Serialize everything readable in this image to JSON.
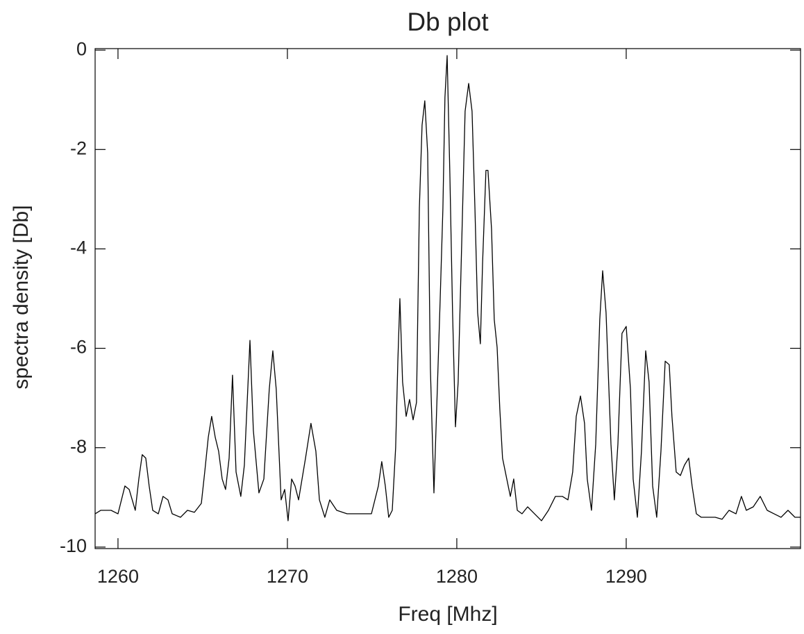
{
  "chart_data": {
    "type": "line",
    "title": "Db plot",
    "xlabel": "Freq [Mhz]",
    "ylabel": "spectra density [Db]",
    "color": "#000000",
    "xlim": [
      1258.65,
      1300.29
    ],
    "ylim": [
      -10.03,
      0.03
    ],
    "xticks": [
      1260,
      1270,
      1280,
      1290
    ],
    "yticks": [
      -10,
      -8,
      -6,
      -4,
      -2,
      0
    ],
    "grid": false,
    "x": [
      1258.65,
      1258.98,
      1259.59,
      1260.0,
      1260.41,
      1260.66,
      1261.02,
      1261.23,
      1261.43,
      1261.64,
      1261.84,
      1262.05,
      1262.38,
      1262.66,
      1262.95,
      1263.2,
      1263.69,
      1264.1,
      1264.51,
      1264.92,
      1265.12,
      1265.33,
      1265.53,
      1265.74,
      1265.94,
      1266.15,
      1266.35,
      1266.56,
      1266.76,
      1266.97,
      1267.25,
      1267.46,
      1267.79,
      1267.99,
      1268.32,
      1268.61,
      1268.93,
      1269.14,
      1269.34,
      1269.63,
      1269.84,
      1270.04,
      1270.25,
      1270.45,
      1270.66,
      1271.07,
      1271.39,
      1271.68,
      1271.89,
      1272.21,
      1272.5,
      1272.91,
      1273.52,
      1274.34,
      1274.96,
      1275.37,
      1275.57,
      1275.78,
      1275.98,
      1276.19,
      1276.39,
      1276.52,
      1276.64,
      1276.8,
      1277.01,
      1277.21,
      1277.42,
      1277.62,
      1277.79,
      1277.95,
      1278.11,
      1278.28,
      1278.44,
      1278.65,
      1278.85,
      1279.02,
      1279.18,
      1279.3,
      1279.43,
      1279.59,
      1279.75,
      1279.92,
      1280.08,
      1280.29,
      1280.49,
      1280.7,
      1280.9,
      1281.07,
      1281.23,
      1281.39,
      1281.52,
      1281.72,
      1281.84,
      1282.05,
      1282.21,
      1282.38,
      1282.54,
      1282.7,
      1282.95,
      1283.16,
      1283.36,
      1283.57,
      1283.85,
      1284.18,
      1284.59,
      1285.0,
      1285.41,
      1285.82,
      1286.23,
      1286.56,
      1286.84,
      1287.05,
      1287.3,
      1287.54,
      1287.7,
      1287.95,
      1288.2,
      1288.44,
      1288.61,
      1288.81,
      1289.1,
      1289.3,
      1289.51,
      1289.75,
      1290.0,
      1290.25,
      1290.41,
      1290.66,
      1290.9,
      1291.15,
      1291.35,
      1291.56,
      1291.8,
      1292.05,
      1292.3,
      1292.54,
      1292.7,
      1292.95,
      1293.2,
      1293.44,
      1293.69,
      1293.89,
      1294.14,
      1294.43,
      1294.84,
      1295.25,
      1295.66,
      1296.07,
      1296.48,
      1296.8,
      1297.09,
      1297.5,
      1297.91,
      1298.32,
      1298.73,
      1299.14,
      1299.55,
      1299.96,
      1300.29
    ],
    "values": [
      -9.33,
      -9.26,
      -9.26,
      -9.33,
      -8.77,
      -8.84,
      -9.26,
      -8.63,
      -8.14,
      -8.21,
      -8.77,
      -9.26,
      -9.33,
      -8.98,
      -9.05,
      -9.33,
      -9.4,
      -9.26,
      -9.3,
      -9.12,
      -8.49,
      -7.79,
      -7.37,
      -7.79,
      -8.07,
      -8.63,
      -8.84,
      -8.21,
      -6.54,
      -8.49,
      -8.98,
      -8.35,
      -5.84,
      -7.65,
      -8.91,
      -8.63,
      -6.82,
      -6.05,
      -6.82,
      -9.05,
      -8.84,
      -9.47,
      -8.63,
      -8.77,
      -9.05,
      -8.21,
      -7.51,
      -8.07,
      -9.05,
      -9.4,
      -9.05,
      -9.26,
      -9.33,
      -9.33,
      -9.33,
      -8.77,
      -8.28,
      -8.77,
      -9.4,
      -9.26,
      -8.0,
      -6.26,
      -5.0,
      -6.68,
      -7.37,
      -7.03,
      -7.44,
      -7.09,
      -3.18,
      -1.51,
      -1.02,
      -2.07,
      -6.4,
      -8.91,
      -6.82,
      -5.0,
      -3.18,
      -0.95,
      -0.11,
      -2.49,
      -5.28,
      -7.58,
      -6.68,
      -3.88,
      -1.23,
      -0.67,
      -1.23,
      -3.18,
      -5.28,
      -5.91,
      -4.3,
      -2.42,
      -2.42,
      -3.6,
      -5.42,
      -5.98,
      -7.23,
      -8.21,
      -8.63,
      -8.98,
      -8.63,
      -9.26,
      -9.33,
      -9.19,
      -9.33,
      -9.47,
      -9.26,
      -8.98,
      -8.98,
      -9.05,
      -8.49,
      -7.37,
      -6.96,
      -7.51,
      -8.63,
      -9.26,
      -7.93,
      -5.42,
      -4.44,
      -5.28,
      -7.93,
      -9.05,
      -7.93,
      -5.7,
      -5.56,
      -6.82,
      -8.63,
      -9.4,
      -8.07,
      -6.05,
      -6.68,
      -8.77,
      -9.4,
      -8.07,
      -6.26,
      -6.33,
      -7.37,
      -8.49,
      -8.56,
      -8.35,
      -8.21,
      -8.77,
      -9.33,
      -9.4,
      -9.4,
      -9.4,
      -9.44,
      -9.26,
      -9.33,
      -8.98,
      -9.26,
      -9.19,
      -8.98,
      -9.26,
      -9.33,
      -9.4,
      -9.26,
      -9.4,
      -9.4
    ]
  }
}
